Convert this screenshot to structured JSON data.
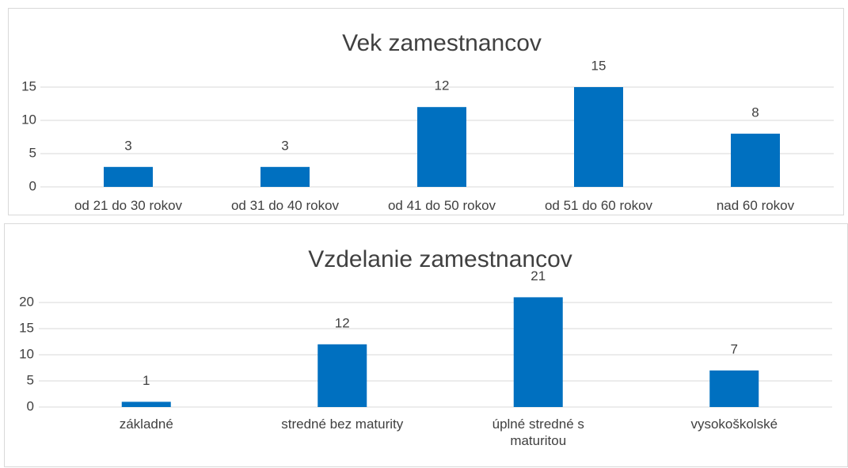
{
  "chart_data": [
    {
      "type": "bar",
      "title": "Vek zamestnancov",
      "categories": [
        "od 21 do 30  rokov",
        "od 31 do 40  rokov",
        "od 41 do 50  rokov",
        "od 51 do 60  rokov",
        "nad 60 rokov"
      ],
      "values": [
        3,
        3,
        12,
        15,
        8
      ],
      "color": "#0070c0",
      "ylim": [
        0,
        15
      ],
      "yticks": [
        0,
        5,
        10,
        15
      ],
      "grid": true
    },
    {
      "type": "bar",
      "title": "Vzdelanie zamestnancov",
      "categories": [
        "základné",
        "stredné bez maturity",
        "úplné stredné s maturitou",
        "vysokoškolské"
      ],
      "values": [
        1,
        12,
        21,
        7
      ],
      "color": "#0070c0",
      "ylim": [
        0,
        20
      ],
      "yticks": [
        0,
        5,
        10,
        15,
        20
      ],
      "grid": true
    }
  ]
}
